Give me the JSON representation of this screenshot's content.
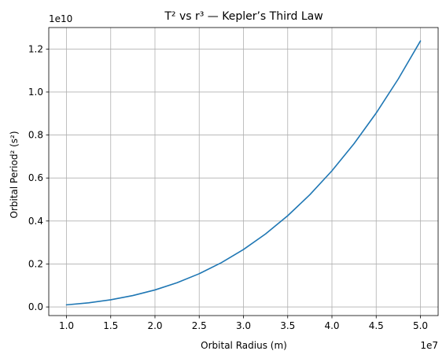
{
  "chart_data": {
    "type": "line",
    "title": "T² vs r³ — Kepler’s Third Law",
    "xlabel": "Orbital Radius (m)",
    "ylabel": "Orbital Period² (s²)",
    "x_offset_label": "1e7",
    "y_offset_label": "1e10",
    "x_scale": 10000000,
    "y_scale": 10000000000,
    "xlim": [
      8000000,
      52000000
    ],
    "ylim": [
      -400000000,
      13000000000
    ],
    "x_ticks": [
      10000000,
      15000000,
      20000000,
      25000000,
      30000000,
      35000000,
      40000000,
      45000000,
      50000000
    ],
    "x_tick_labels": [
      "1.0",
      "1.5",
      "2.0",
      "2.5",
      "3.0",
      "3.5",
      "4.0",
      "4.5",
      "5.0"
    ],
    "y_ticks": [
      0,
      2000000000,
      4000000000,
      6000000000,
      8000000000,
      10000000000,
      12000000000
    ],
    "y_tick_labels": [
      "0.0",
      "0.2",
      "0.4",
      "0.6",
      "0.8",
      "1.0",
      "1.2"
    ],
    "grid": true,
    "series": [
      {
        "color": "#1f77b4",
        "x": [
          10000000,
          12500000,
          15000000,
          17500000,
          20000000,
          22500000,
          25000000,
          27500000,
          30000000,
          32500000,
          35000000,
          37500000,
          40000000,
          42500000,
          45000000,
          47500000,
          50000000
        ],
        "y": [
          99000000,
          193000000,
          334000000,
          531000000,
          792000000,
          1128000000,
          1547000000,
          2059000000,
          2673000000,
          3398000000,
          4245000000,
          5221000000,
          6337000000,
          7601000000,
          9022000000,
          10611000000,
          12376000000
        ]
      }
    ]
  }
}
